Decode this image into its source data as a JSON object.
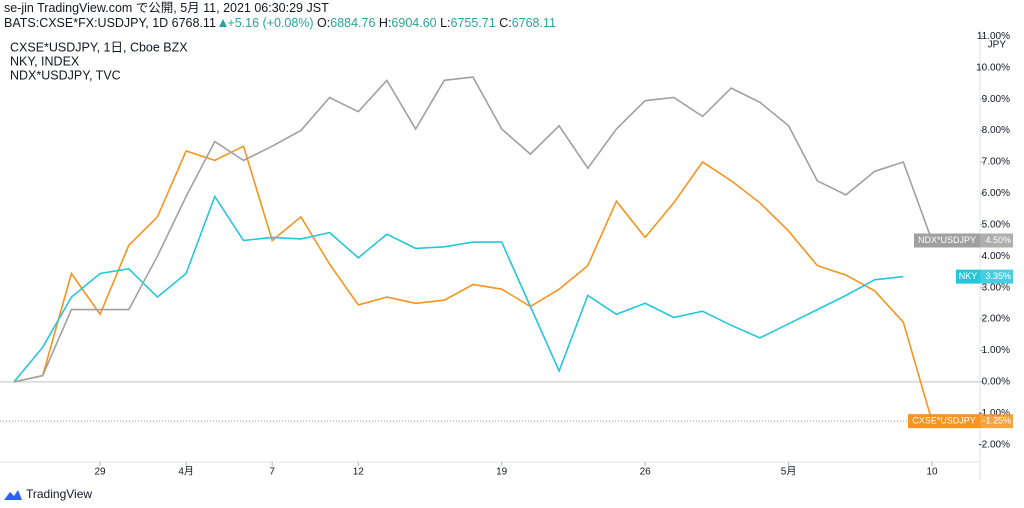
{
  "header": {
    "title": "se-jin TradingView.com で公開, 5月 11, 2021 06:30:29 JST",
    "symbol": "BATS:CXSE*FX:USDJPY, 1D 6768.11",
    "change": "+5.16 (+0.08%)",
    "ohlc": [
      {
        "key": "O:",
        "value": "6884.76"
      },
      {
        "key": "H:",
        "value": "6904.60"
      },
      {
        "key": "L:",
        "value": "6755.71"
      },
      {
        "key": "C:",
        "value": "6768.11"
      }
    ]
  },
  "chart_data": {
    "type": "line",
    "legend": [
      "CXSE*USDJPY, 1日, Cboe BZX",
      "NKY, INDEX",
      "NDX*USDJPY, TVC"
    ],
    "y_unit": "JPY",
    "categories": [
      null,
      null,
      null,
      "29",
      null,
      null,
      "4月",
      null,
      null,
      "7",
      null,
      null,
      "12",
      null,
      null,
      null,
      null,
      "19",
      null,
      null,
      null,
      null,
      "26",
      null,
      null,
      null,
      null,
      "5月",
      null,
      null,
      null,
      null,
      "10"
    ],
    "series": [
      {
        "name": "CXSE*USDJPY",
        "color": "#f7931e",
        "last_label": "-1.25%",
        "values": [
          0,
          0.2,
          3.45,
          2.15,
          4.35,
          5.25,
          7.35,
          7.05,
          7.5,
          4.5,
          5.25,
          3.75,
          2.45,
          2.7,
          2.5,
          2.6,
          3.1,
          2.95,
          2.4,
          2.95,
          3.7,
          5.75,
          4.6,
          5.7,
          7.0,
          6.4,
          5.7,
          4.8,
          3.7,
          3.4,
          2.9,
          1.9,
          -1.25
        ]
      },
      {
        "name": "NKY",
        "color": "#26c6da",
        "last_label": "3.35%",
        "values": [
          0,
          1.1,
          2.7,
          3.45,
          3.6,
          2.7,
          3.45,
          5.9,
          4.5,
          4.6,
          4.55,
          4.75,
          3.95,
          4.7,
          4.25,
          4.3,
          4.45,
          4.45,
          2.4,
          0.35,
          2.75,
          2.15,
          2.5,
          2.05,
          2.25,
          1.8,
          1.4,
          1.85,
          2.3,
          2.75,
          3.25,
          3.35,
          null
        ]
      },
      {
        "name": "NDX*USDJPY",
        "color": "#a0a0a0",
        "last_label": "4.50%",
        "values": [
          0,
          0.2,
          2.3,
          2.3,
          2.3,
          4.0,
          5.9,
          7.65,
          7.05,
          7.5,
          8.0,
          9.05,
          8.6,
          9.6,
          8.05,
          9.6,
          9.7,
          8.05,
          7.25,
          8.15,
          6.8,
          8.05,
          8.95,
          9.05,
          8.45,
          9.35,
          8.9,
          8.15,
          6.4,
          5.95,
          6.7,
          7.0,
          4.5
        ]
      }
    ],
    "ylim": [
      -2.55,
      11.2
    ],
    "yticks": [
      {
        "value": -2,
        "label": "-2.00%"
      },
      {
        "value": -1,
        "label": "-1.00%"
      },
      {
        "value": 0,
        "label": "0.00%"
      },
      {
        "value": 1,
        "label": "1.00%"
      },
      {
        "value": 2,
        "label": "2.00%"
      },
      {
        "value": 3,
        "label": "3.00%"
      },
      {
        "value": 4,
        "label": "4.00%"
      },
      {
        "value": 5,
        "label": "5.00%"
      },
      {
        "value": 6,
        "label": "6.00%"
      },
      {
        "value": 7,
        "label": "7.00%"
      },
      {
        "value": 8,
        "label": "8.00%"
      },
      {
        "value": 9,
        "label": "9.00%"
      },
      {
        "value": 10,
        "label": "10.00%"
      },
      {
        "value": 11,
        "label": "11.00%"
      }
    ],
    "zero_line": true
  },
  "footer": {
    "brand": "TradingView"
  }
}
